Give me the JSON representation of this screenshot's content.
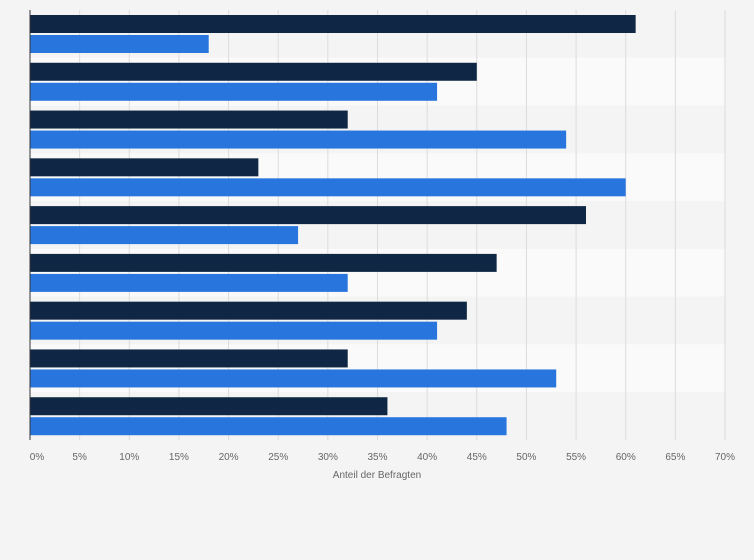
{
  "chart_data": {
    "type": "bar",
    "orientation": "horizontal",
    "categories": [
      "",
      "",
      "",
      "",
      "",
      "",
      "",
      "",
      ""
    ],
    "series": [
      {
        "values": [
          61,
          45,
          32,
          23,
          56,
          47,
          44,
          32,
          36
        ],
        "color": "#0f2744"
      },
      {
        "values": [
          18,
          41,
          54,
          60,
          27,
          32,
          41,
          53,
          48
        ],
        "color": "#2876dd"
      }
    ],
    "xlabel": "Anteil der Befragten",
    "xlim": [
      0,
      70
    ],
    "x_ticks": [
      "0%",
      "5%",
      "10%",
      "15%",
      "20%",
      "25%",
      "30%",
      "35%",
      "40%",
      "45%",
      "50%",
      "55%",
      "60%",
      "65%",
      "70%"
    ],
    "grid": true,
    "band_colors": [
      "#f4f4f4",
      "#fafafa"
    ]
  }
}
